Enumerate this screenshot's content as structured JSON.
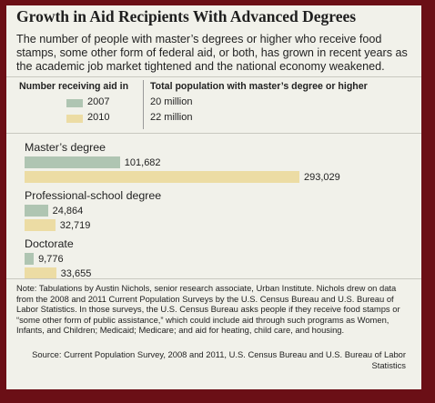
{
  "header": {
    "title": "Growth in Aid Recipients With Advanced Degrees",
    "subtitle": "The number of people with master’s degrees or higher who receive food stamps, some other form of federal aid, or both, has grown in recent years as the academic job market tightened and the national economy weakened."
  },
  "legend": {
    "left_heading": "Number receiving aid in",
    "right_heading": "Total population with master’s degree or higher",
    "items": [
      {
        "year": "2007",
        "population": "20 million",
        "color": "#afc5b2"
      },
      {
        "year": "2010",
        "population": "22 million",
        "color": "#ecdca4"
      }
    ]
  },
  "chart_data": {
    "type": "bar",
    "orientation": "horizontal",
    "categories": [
      "Master’s degree",
      "Professional-school degree",
      "Doctorate"
    ],
    "series": [
      {
        "name": "2007",
        "values": [
          101682,
          24864,
          9776
        ],
        "labels": [
          "101,682",
          "24,864",
          "9,776"
        ],
        "color": "#afc5b2"
      },
      {
        "name": "2010",
        "values": [
          293029,
          32719,
          33655
        ],
        "labels": [
          "293,029",
          "32,719",
          "33,655"
        ],
        "color": "#ecdca4"
      }
    ],
    "title": "",
    "xlabel": "",
    "ylabel": "",
    "xlim": [
      0,
      293029
    ],
    "grid": false,
    "legend": "top-left"
  },
  "footer": {
    "note": "Note: Tabulations by Austin Nichols, senior research associate, Urban Institute. Nichols drew on data from the 2008 and 2011 Current Population Surveys by the U.S. Census Bureau and U.S. Bureau of Labor Statistics. In those surveys, the U.S. Census Bureau asks people if they receive food stamps or “some other form of public assistance,” which could include aid through such programs as Women, Infants, and Children; Medicaid; Medicare; and aid for heating, child care, and housing.",
    "source": "Source: Current Population Survey, 2008 and 2011, U.S. Census Bureau and U.S. Bureau of Labor Statistics"
  }
}
